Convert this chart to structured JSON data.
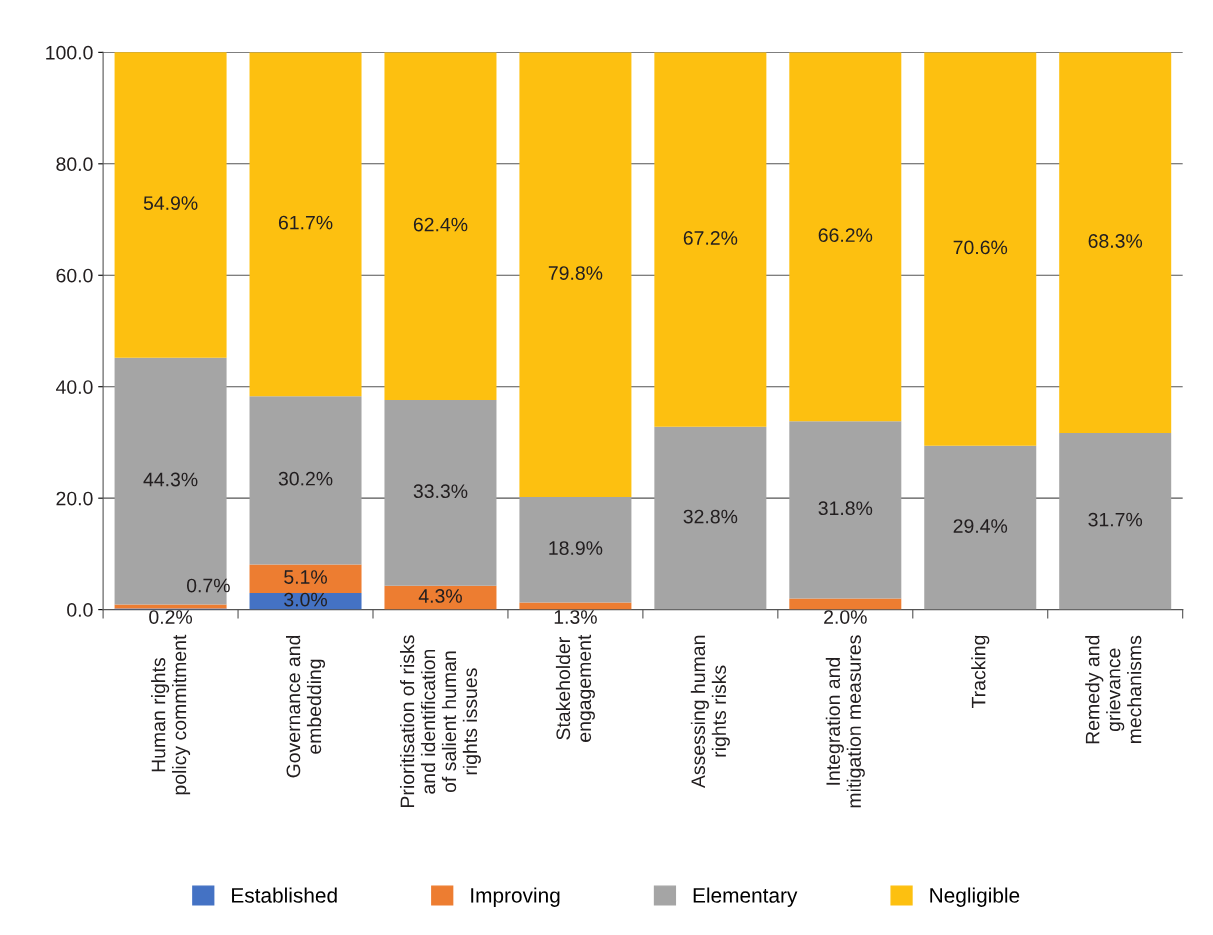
{
  "chart_data": {
    "type": "bar",
    "stacked": true,
    "categories": [
      "Human rights\npolicy commitment",
      "Governance and\nembedding",
      "Prioritisation of risks\nand identification\nof salient human\nrights issues",
      "Stakeholder\nengagement",
      "Assessing human\nrights risks",
      "Integration and\nmitigation measures",
      "Tracking",
      "Remedy and\ngrievance\nmechanisms"
    ],
    "series": [
      {
        "name": "Established",
        "color": "#4472c4",
        "values": [
          0.2,
          3.0,
          0,
          0,
          0,
          0,
          0,
          0
        ],
        "value_labels": [
          "0.2%",
          "3.0%",
          null,
          null,
          null,
          null,
          null,
          null
        ]
      },
      {
        "name": "Improving",
        "color": "#ed7d31",
        "values": [
          0.7,
          5.1,
          4.3,
          1.3,
          0,
          2.0,
          0,
          0
        ],
        "value_labels": [
          "0.7%",
          "5.1%",
          "4.3%",
          "1.3%",
          null,
          "2.0%",
          null,
          null
        ]
      },
      {
        "name": "Elementary",
        "color": "#a5a5a5",
        "values": [
          44.3,
          30.2,
          33.3,
          18.9,
          32.8,
          31.8,
          29.4,
          31.7
        ],
        "value_labels": [
          "44.3%",
          "30.2%",
          "33.3%",
          "18.9%",
          "32.8%",
          "31.8%",
          "29.4%",
          "31.7%"
        ]
      },
      {
        "name": "Negligible",
        "color": "#fdc010",
        "values": [
          54.9,
          61.7,
          62.4,
          79.8,
          67.2,
          66.2,
          70.6,
          68.3
        ],
        "value_labels": [
          "54.9%",
          "61.7%",
          "62.4%",
          "79.8%",
          "67.2%",
          "66.2%",
          "70.6%",
          "68.3%"
        ]
      }
    ],
    "ylim": [
      0,
      100
    ],
    "yticks": [
      {
        "value": 0,
        "label": "0.0"
      },
      {
        "value": 20,
        "label": "20.0"
      },
      {
        "value": 40,
        "label": "40.0"
      },
      {
        "value": 60,
        "label": "60.0"
      },
      {
        "value": 80,
        "label": "80.0"
      },
      {
        "value": 100,
        "label": "100.0"
      }
    ],
    "grid": "y",
    "legend": "bottom"
  }
}
